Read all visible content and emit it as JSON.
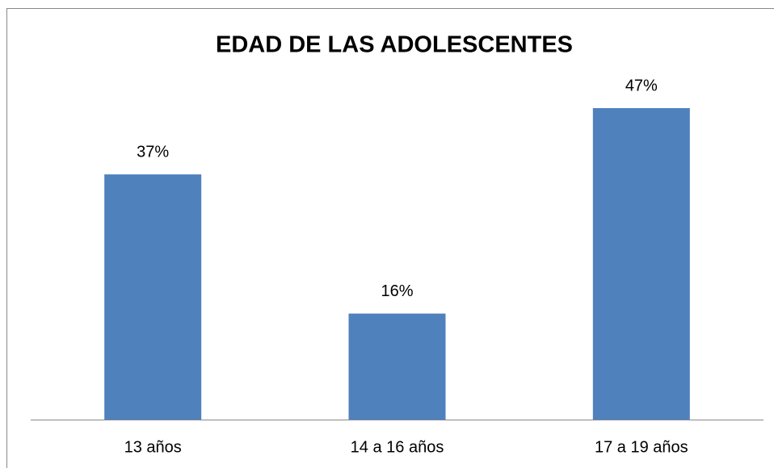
{
  "chart_data": {
    "type": "bar",
    "title": "EDAD DE LAS ADOLESCENTES",
    "categories": [
      "13 años",
      "14 a 16 años",
      "17 a 19 años"
    ],
    "values": [
      37,
      16,
      47
    ],
    "value_labels": [
      "37%",
      "16%",
      "47%"
    ],
    "color": "#4f81bd"
  }
}
